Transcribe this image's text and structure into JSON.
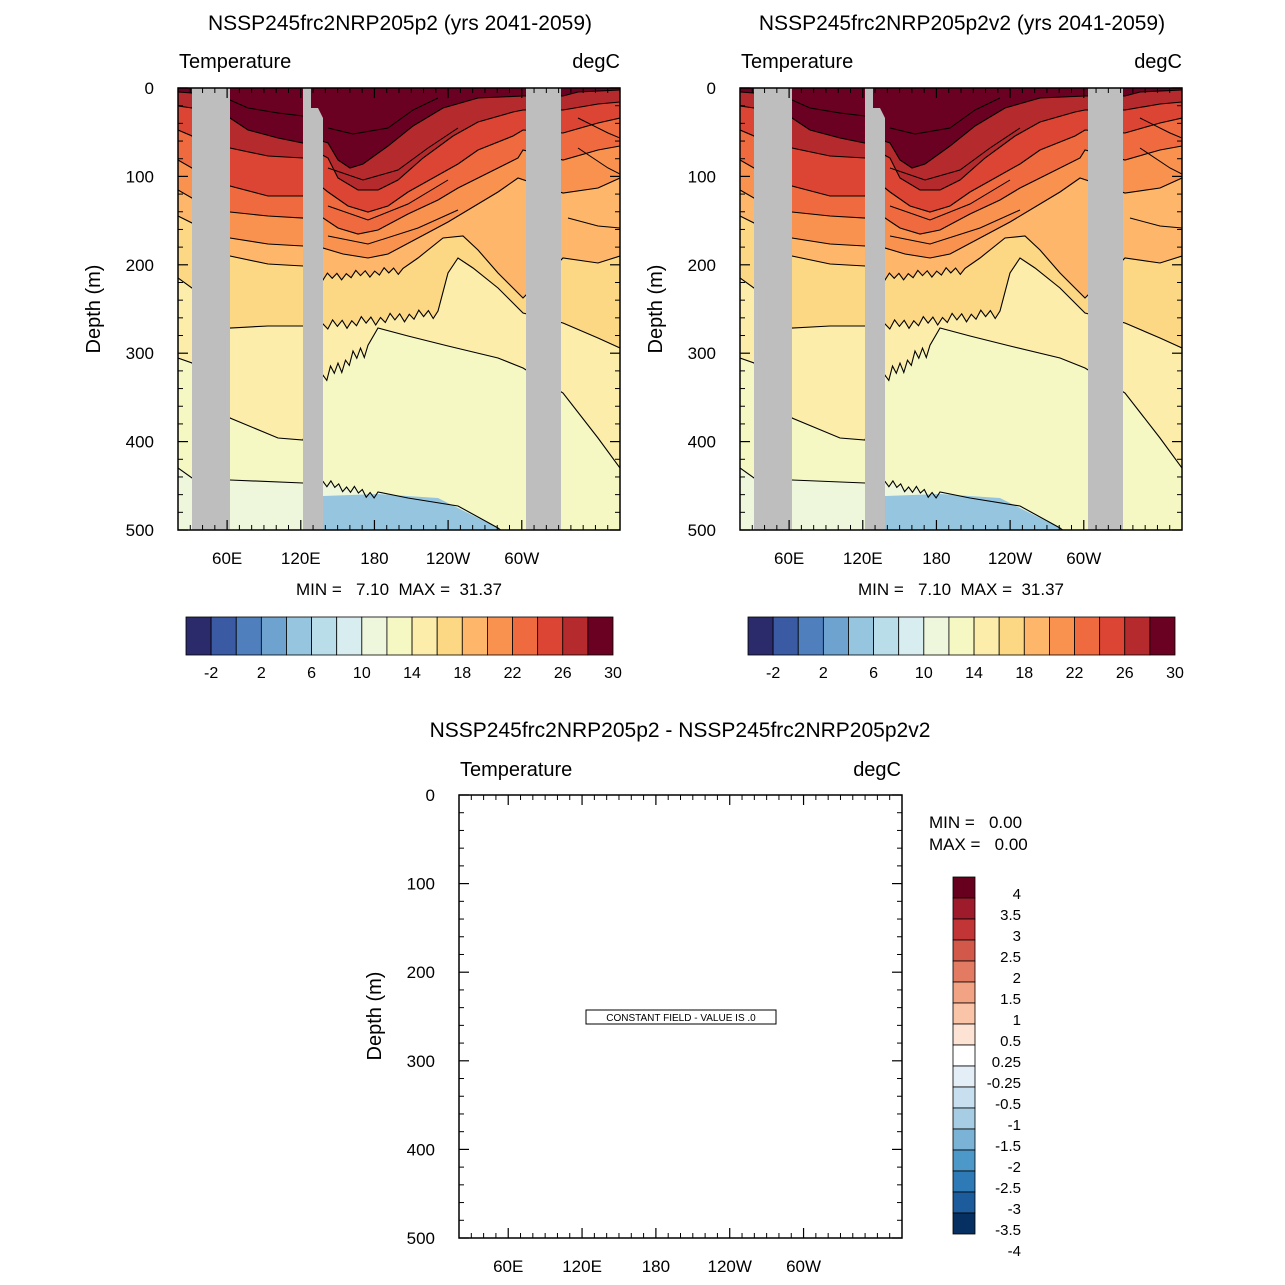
{
  "colors": {
    "land": "#bebebe",
    "temp_palette": [
      "#2b2a6b",
      "#3a5aa4",
      "#4f7fbd",
      "#6ea3cf",
      "#96c6df",
      "#b9dde9",
      "#d8edf0",
      "#eef7dc",
      "#f6f8c4",
      "#fcedab",
      "#fdd884",
      "#fdb66a",
      "#f9914f",
      "#ef6a3e",
      "#dc4433",
      "#b52a2c",
      "#6a0022"
    ],
    "diff_palette": [
      "#053061",
      "#1c5c9c",
      "#2e7ab6",
      "#4b98c9",
      "#7ab3d6",
      "#a6cde3",
      "#c7dfee",
      "#e4eef6",
      "#ffffff",
      "#fde3d4",
      "#f9c4a7",
      "#f2a384",
      "#e37b63",
      "#d25849",
      "#c13537",
      "#9e1b2b",
      "#67001f"
    ]
  },
  "chart_data": [
    {
      "type": "contour",
      "title": "NSSP245frc2NRP205p2 (yrs 2041-2059)",
      "left_label": "Temperature",
      "right_label": "degC",
      "ylabel": "Depth (m)",
      "yticks": [
        "0",
        "100",
        "200",
        "300",
        "400",
        "500"
      ],
      "xticks": [
        "60E",
        "120E",
        "180",
        "120W",
        "60W"
      ],
      "ylim": [
        0,
        500
      ],
      "stats": "MIN =   7.10  MAX =  31.37",
      "colorbar_labels": [
        "-2",
        "2",
        "6",
        "10",
        "14",
        "18",
        "22",
        "26",
        "30"
      ]
    },
    {
      "type": "contour",
      "title": "NSSP245frc2NRP205p2v2 (yrs 2041-2059)",
      "left_label": "Temperature",
      "right_label": "degC",
      "ylabel": "Depth (m)",
      "yticks": [
        "0",
        "100",
        "200",
        "300",
        "400",
        "500"
      ],
      "xticks": [
        "60E",
        "120E",
        "180",
        "120W",
        "60W"
      ],
      "ylim": [
        0,
        500
      ],
      "stats": "MIN =   7.10  MAX =  31.37",
      "colorbar_labels": [
        "-2",
        "2",
        "6",
        "10",
        "14",
        "18",
        "22",
        "26",
        "30"
      ]
    },
    {
      "type": "contour",
      "title": "NSSP245frc2NRP205p2 - NSSP245frc2NRP205p2v2",
      "left_label": "Temperature",
      "right_label": "degC",
      "ylabel": "Depth (m)",
      "yticks": [
        "0",
        "100",
        "200",
        "300",
        "400",
        "500"
      ],
      "xticks": [
        "60E",
        "120E",
        "180",
        "120W",
        "60W"
      ],
      "ylim": [
        0,
        500
      ],
      "min_text": "MIN =   0.00",
      "max_text": "MAX =   0.00",
      "notice": "CONSTANT FIELD - VALUE IS .0",
      "colorbar_labels": [
        "4",
        "3.5",
        "3",
        "2.5",
        "2",
        "1.5",
        "1",
        "0.5",
        "0.25",
        "-0.25",
        "-0.5",
        "-1",
        "-1.5",
        "-2",
        "-2.5",
        "-3",
        "-3.5",
        "-4"
      ]
    }
  ]
}
